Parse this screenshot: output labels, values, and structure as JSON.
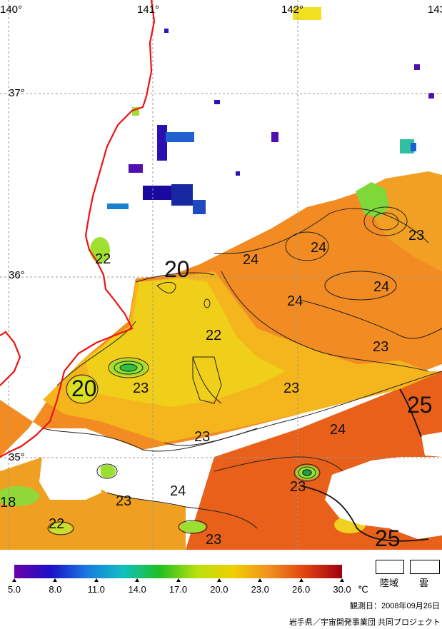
{
  "map": {
    "lon_labels": [
      "140°",
      "141°",
      "142°",
      "143"
    ],
    "lat_labels": [
      "37°",
      "36°",
      "35°"
    ],
    "contour_labels": [
      {
        "text": "22",
        "size": "normal"
      },
      {
        "text": "20",
        "size": "large"
      },
      {
        "text": "24",
        "size": "normal"
      },
      {
        "text": "24",
        "size": "normal"
      },
      {
        "text": "23",
        "size": "normal"
      },
      {
        "text": "24",
        "size": "normal"
      },
      {
        "text": "24",
        "size": "normal"
      },
      {
        "text": "22",
        "size": "normal"
      },
      {
        "text": "23",
        "size": "normal"
      },
      {
        "text": "20",
        "size": "large"
      },
      {
        "text": "23",
        "size": "normal"
      },
      {
        "text": "23",
        "size": "normal"
      },
      {
        "text": "25",
        "size": "large"
      },
      {
        "text": "24",
        "size": "normal"
      },
      {
        "text": "23",
        "size": "normal"
      },
      {
        "text": "23",
        "size": "normal"
      },
      {
        "text": "24",
        "size": "normal"
      },
      {
        "text": "23",
        "size": "normal"
      },
      {
        "text": "18",
        "size": "normal"
      },
      {
        "text": "22",
        "size": "normal"
      },
      {
        "text": "23",
        "size": "normal"
      },
      {
        "text": "25",
        "size": "large"
      }
    ]
  },
  "colorbar": {
    "ticks": [
      "5.0",
      "8.0",
      "11.0",
      "14.0",
      "17.0",
      "20.0",
      "23.0",
      "26.0",
      "30.0"
    ],
    "unit": "℃",
    "colors": [
      "#6a00a8",
      "#1a10c8",
      "#1a7be0",
      "#10c0c0",
      "#20c020",
      "#b8e010",
      "#f0d000",
      "#f09020",
      "#e04010",
      "#a00010"
    ]
  },
  "legend": {
    "land_label": "陸域",
    "cloud_label": "雲"
  },
  "footer": {
    "observation_date": "観測日：2008年09月26日",
    "credit": "岩手県／宇宙開発事業団 共同プロジェクト"
  },
  "colors": {
    "coastline": "#ee1111",
    "grid": "#999999",
    "warm": "#f08a20",
    "mid": "#f2c018",
    "cool": "#f0dc20",
    "hot": "#e85a10"
  }
}
